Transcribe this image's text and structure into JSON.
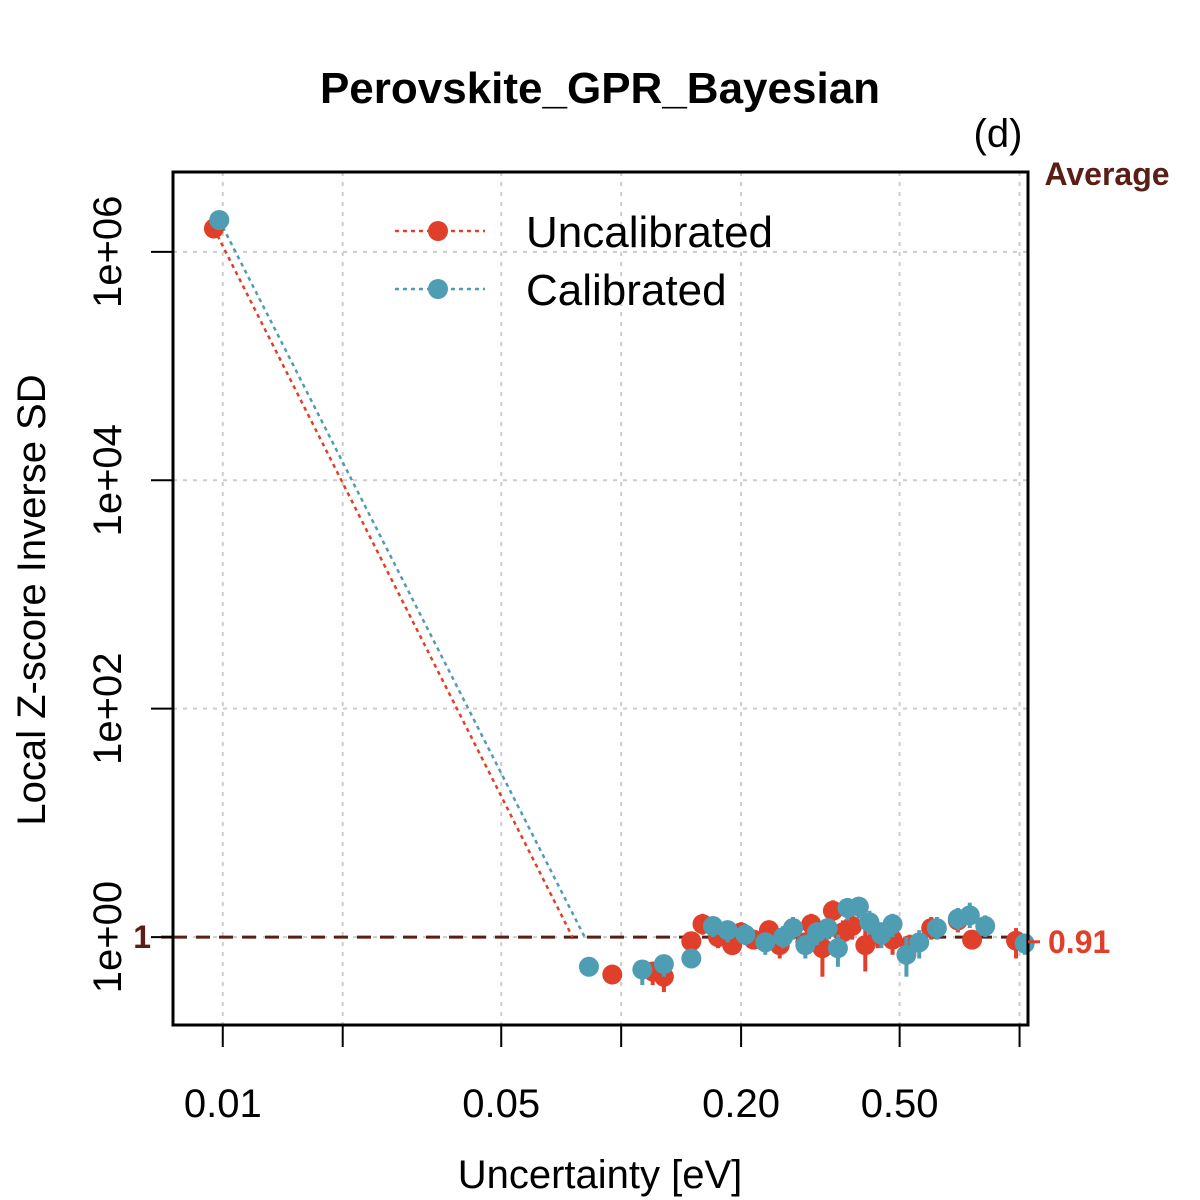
{
  "chart_data": {
    "type": "scatter",
    "title": "Perovskite_GPR_Bayesian",
    "panel_label": "(d)",
    "xlabel": "Uncertainty [eV]",
    "ylabel": "Local Z-score Inverse SD",
    "x_scale": "log",
    "y_scale": "log",
    "xlim": [
      0.0075,
      1.05
    ],
    "ylim": [
      0.17,
      5000000
    ],
    "x_ticks": [
      0.01,
      0.02,
      0.05,
      0.1,
      0.2,
      0.5,
      1.0
    ],
    "x_tick_labels": [
      "0.01",
      "",
      "0.05",
      "",
      "0.20",
      "0.50",
      ""
    ],
    "y_ticks": [
      1,
      100,
      10000,
      1000000
    ],
    "y_tick_labels": [
      "1e+00",
      "1e+02",
      "1e+04",
      "1e+06"
    ],
    "grid": true,
    "reference_line": {
      "y": 1,
      "label": "1",
      "color": "#5a1e16"
    },
    "average_label": "Average",
    "legend": {
      "position": "top-center",
      "entries": [
        "Uncalibrated",
        "Calibrated"
      ]
    },
    "series": [
      {
        "name": "Uncalibrated",
        "color": "#e0402a",
        "average": 0.91,
        "average_label": "0.91",
        "line_points": [
          [
            0.0095,
            1600000
          ],
          [
            0.0755,
            1.0
          ]
        ],
        "points": [
          [
            0.0095,
            1600000,
            1600000,
            1600000
          ],
          [
            0.095,
            0.47,
            0.42,
            0.52
          ],
          [
            0.12,
            0.5,
            0.38,
            0.6
          ],
          [
            0.128,
            0.45,
            0.33,
            0.58
          ],
          [
            0.15,
            0.92,
            0.75,
            1.1
          ],
          [
            0.16,
            1.3,
            1.05,
            1.6
          ],
          [
            0.175,
            1.0,
            0.8,
            1.25
          ],
          [
            0.19,
            0.85,
            0.7,
            1.05
          ],
          [
            0.2,
            1.1,
            0.9,
            1.35
          ],
          [
            0.215,
            0.95,
            0.78,
            1.15
          ],
          [
            0.235,
            1.15,
            0.92,
            1.4
          ],
          [
            0.25,
            0.85,
            0.65,
            1.05
          ],
          [
            0.27,
            1.2,
            0.98,
            1.45
          ],
          [
            0.29,
            0.9,
            0.7,
            1.1
          ],
          [
            0.3,
            1.3,
            1.05,
            1.6
          ],
          [
            0.32,
            0.8,
            0.45,
            1.05
          ],
          [
            0.34,
            1.7,
            1.3,
            2.1
          ],
          [
            0.36,
            1.1,
            0.85,
            1.4
          ],
          [
            0.38,
            1.25,
            0.95,
            1.55
          ],
          [
            0.41,
            0.85,
            0.5,
            1.2
          ],
          [
            0.44,
            1.05,
            0.8,
            1.35
          ],
          [
            0.48,
            0.95,
            0.7,
            1.25
          ],
          [
            0.53,
            0.85,
            0.65,
            1.05
          ],
          [
            0.6,
            1.2,
            0.95,
            1.5
          ],
          [
            0.7,
            1.4,
            1.1,
            1.75
          ],
          [
            0.76,
            0.95,
            0.8,
            1.1
          ],
          [
            0.98,
            0.93,
            0.65,
            1.2
          ]
        ]
      },
      {
        "name": "Calibrated",
        "color": "#4f9db2",
        "average": 0.91,
        "average_label": "0.91",
        "line_points": [
          [
            0.0098,
            1900000
          ],
          [
            0.081,
            1.0
          ]
        ],
        "points": [
          [
            0.0098,
            1900000,
            1900000,
            1900000
          ],
          [
            0.083,
            0.55,
            0.48,
            0.62
          ],
          [
            0.113,
            0.52,
            0.38,
            0.62
          ],
          [
            0.128,
            0.58,
            0.45,
            0.7
          ],
          [
            0.15,
            0.65,
            0.55,
            0.78
          ],
          [
            0.17,
            1.25,
            1.0,
            1.5
          ],
          [
            0.185,
            1.15,
            0.9,
            1.35
          ],
          [
            0.205,
            1.05,
            0.85,
            1.3
          ],
          [
            0.23,
            0.9,
            0.7,
            1.1
          ],
          [
            0.255,
            1.0,
            0.8,
            1.25
          ],
          [
            0.27,
            1.2,
            0.95,
            1.5
          ],
          [
            0.29,
            0.85,
            0.65,
            1.05
          ],
          [
            0.31,
            1.1,
            0.85,
            1.35
          ],
          [
            0.33,
            1.2,
            0.95,
            1.45
          ],
          [
            0.35,
            0.8,
            0.55,
            1.05
          ],
          [
            0.37,
            1.8,
            1.4,
            2.2
          ],
          [
            0.395,
            1.85,
            1.45,
            2.25
          ],
          [
            0.42,
            1.35,
            1.05,
            1.7
          ],
          [
            0.45,
            1.05,
            0.8,
            1.35
          ],
          [
            0.48,
            1.3,
            1.0,
            1.6
          ],
          [
            0.52,
            0.7,
            0.45,
            1.0
          ],
          [
            0.56,
            0.9,
            0.65,
            1.15
          ],
          [
            0.62,
            1.2,
            0.95,
            1.5
          ],
          [
            0.7,
            1.45,
            1.15,
            1.8
          ],
          [
            0.75,
            1.55,
            1.2,
            2.0
          ],
          [
            0.82,
            1.25,
            1.0,
            1.55
          ],
          [
            1.03,
            0.88,
            0.7,
            1.05
          ]
        ]
      }
    ]
  }
}
